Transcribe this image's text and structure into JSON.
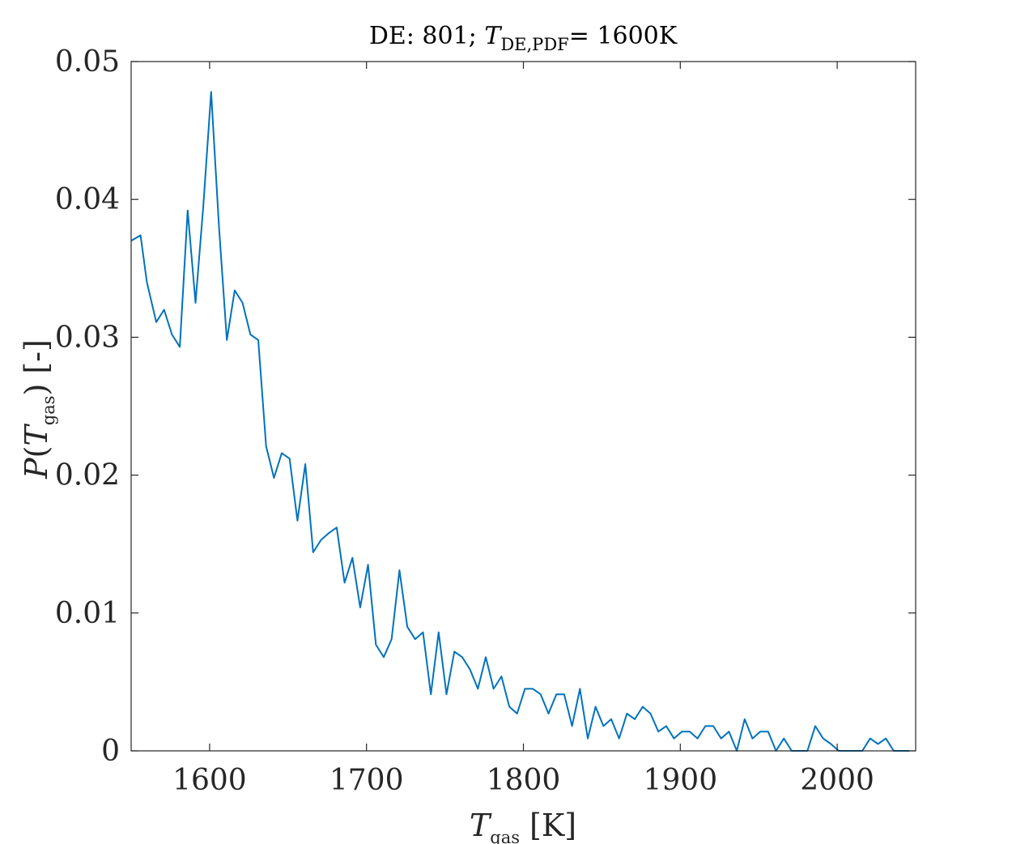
{
  "chart_data": {
    "type": "line",
    "title": {
      "prefix": "DE: 801; ",
      "var": "T",
      "sub": "DE,PDF",
      "suffix": "= 1600K"
    },
    "xlabel": {
      "var": "T",
      "sub": "gas",
      "suffix": "[K]"
    },
    "ylabel": {
      "var": "P",
      "open": "(",
      "inner_var": "T",
      "sub": "gas",
      "close": ")",
      "suffix": "[-]"
    },
    "xlim": [
      1550,
      2050
    ],
    "ylim": [
      0,
      0.05
    ],
    "xticks": [
      1600,
      1700,
      1800,
      1900,
      2000
    ],
    "xtick_labels": [
      "1600",
      "1700",
      "1800",
      "1900",
      "2000"
    ],
    "yticks": [
      0,
      0.01,
      0.02,
      0.03,
      0.04,
      0.05
    ],
    "ytick_labels": [
      "0",
      "0.01",
      "0.02",
      "0.03",
      "0.04",
      "0.05"
    ],
    "grid": false,
    "line_color": "#0072BD",
    "series": [
      {
        "x": [
          1550,
          1556,
          1560,
          1566,
          1571,
          1576,
          1581,
          1586,
          1591,
          1596,
          1601,
          1606,
          1611,
          1616,
          1621,
          1626,
          1631,
          1636,
          1641,
          1646,
          1651,
          1656,
          1661,
          1666,
          1671,
          1676,
          1681,
          1686,
          1691,
          1696,
          1701,
          1706,
          1711,
          1716,
          1721,
          1726,
          1731,
          1736,
          1741,
          1746,
          1751,
          1756,
          1761,
          1766,
          1771,
          1776,
          1781,
          1786,
          1791,
          1796,
          1801,
          1806,
          1811,
          1816,
          1821,
          1826,
          1831,
          1836,
          1841,
          1846,
          1851,
          1856,
          1861,
          1866,
          1871,
          1876,
          1881,
          1886,
          1891,
          1896,
          1901,
          1906,
          1911,
          1916,
          1921,
          1926,
          1931,
          1936,
          1941,
          1946,
          1951,
          1956,
          1961,
          1966,
          1971,
          1976,
          1981,
          1986,
          1991,
          1996,
          2001,
          2006,
          2011,
          2016,
          2021,
          2026,
          2031,
          2036,
          2041,
          2046
        ],
        "y": [
          0.037,
          0.0374,
          0.034,
          0.0311,
          0.032,
          0.0302,
          0.0293,
          0.0392,
          0.0325,
          0.0395,
          0.0478,
          0.038,
          0.0298,
          0.0334,
          0.0325,
          0.0302,
          0.0298,
          0.0221,
          0.0198,
          0.0216,
          0.0212,
          0.0167,
          0.0208,
          0.0144,
          0.0153,
          0.0158,
          0.0162,
          0.0122,
          0.014,
          0.0104,
          0.0135,
          0.0077,
          0.0068,
          0.0081,
          0.0131,
          0.009,
          0.0081,
          0.0086,
          0.0041,
          0.0086,
          0.0041,
          0.0072,
          0.0068,
          0.0059,
          0.0045,
          0.0068,
          0.0045,
          0.0054,
          0.0032,
          0.0027,
          0.0045,
          0.0045,
          0.0041,
          0.0027,
          0.0041,
          0.0041,
          0.0018,
          0.0045,
          0.0009,
          0.0032,
          0.0018,
          0.0023,
          0.0009,
          0.0027,
          0.0023,
          0.0032,
          0.0027,
          0.0014,
          0.0018,
          0.0009,
          0.0014,
          0.0014,
          0.0009,
          0.0018,
          0.0018,
          0.0009,
          0.0014,
          0.0,
          0.0023,
          0.0009,
          0.0014,
          0.0014,
          0.0,
          0.0009,
          0.0,
          0.0,
          0.0,
          0.0018,
          0.0009,
          0.0005,
          0.0,
          0.0,
          0.0,
          0.0,
          0.0009,
          0.0005,
          0.0009,
          0.0,
          0.0,
          0.0
        ]
      }
    ]
  }
}
